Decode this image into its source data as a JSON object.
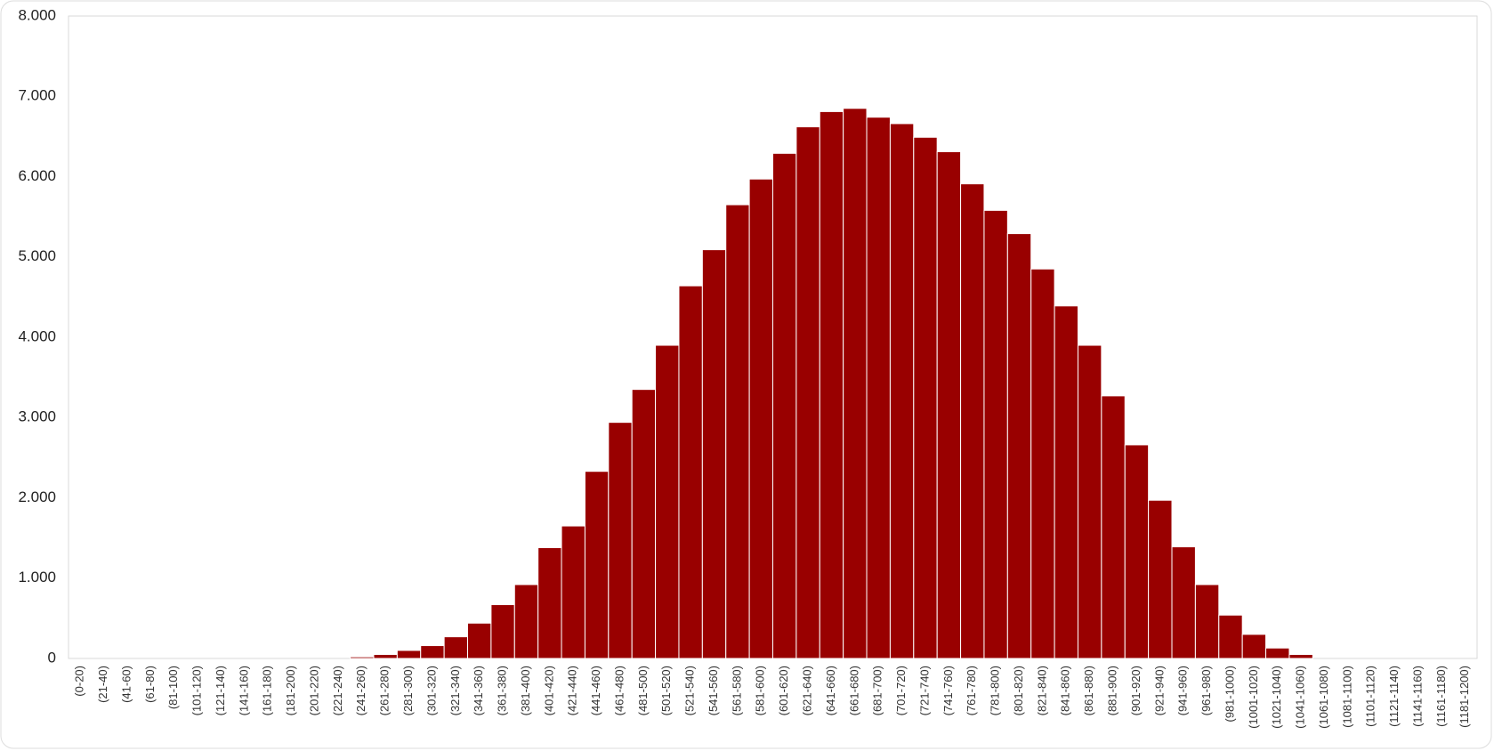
{
  "chart_data": {
    "type": "bar",
    "categories": [
      "(0-20)",
      "(21-40)",
      "(41-60)",
      "(61-80)",
      "(81-100)",
      "(101-120)",
      "(121-140)",
      "(141-160)",
      "(161-180)",
      "(181-200)",
      "(201-220)",
      "(221-240)",
      "(241-260)",
      "(261-280)",
      "(281-300)",
      "(301-320)",
      "(321-340)",
      "(341-360)",
      "(361-380)",
      "(381-400)",
      "(401-420)",
      "(421-440)",
      "(441-460)",
      "(461-480)",
      "(481-500)",
      "(501-520)",
      "(521-540)",
      "(541-560)",
      "(561-580)",
      "(581-600)",
      "(601-620)",
      "(621-640)",
      "(641-660)",
      "(661-680)",
      "(681-700)",
      "(701-720)",
      "(721-740)",
      "(741-760)",
      "(761-780)",
      "(781-800)",
      "(801-820)",
      "(821-840)",
      "(841-860)",
      "(861-880)",
      "(881-900)",
      "(901-920)",
      "(921-940)",
      "(941-960)",
      "(961-980)",
      "(981-1000)",
      "(1001-1020)",
      "(1021-1040)",
      "(1041-1060)",
      "(1061-1080)",
      "(1081-1100)",
      "(1101-1120)",
      "(1121-1140)",
      "(1141-1160)",
      "(1161-1180)",
      "(1181-1200)"
    ],
    "values": [
      0,
      0,
      0,
      0,
      0,
      0,
      0,
      0,
      0,
      0,
      0,
      0,
      20,
      50,
      100,
      160,
      270,
      440,
      670,
      920,
      1380,
      1650,
      2330,
      2940,
      3350,
      3900,
      4640,
      5090,
      5650,
      5970,
      6290,
      6620,
      6810,
      6850,
      6740,
      6660,
      6490,
      6310,
      5910,
      5580,
      5290,
      4850,
      4390,
      3900,
      3270,
      2660,
      1970,
      1390,
      920,
      540,
      300,
      130,
      50,
      0,
      0,
      0,
      0,
      0,
      0,
      0
    ],
    "color": "#990000",
    "ylim": [
      0,
      8000
    ],
    "yticks": [
      0,
      {
        "value": 1000,
        "label": "1.000"
      },
      {
        "value": 2000,
        "label": "2.000"
      },
      {
        "value": 3000,
        "label": "3.000"
      },
      {
        "value": 4000,
        "label": "4.000"
      },
      {
        "value": 5000,
        "label": "5.000"
      },
      {
        "value": 6000,
        "label": "6.000"
      },
      {
        "value": 7000,
        "label": "7.000"
      },
      {
        "value": 8000,
        "label": "8.000"
      }
    ],
    "grid": false
  }
}
